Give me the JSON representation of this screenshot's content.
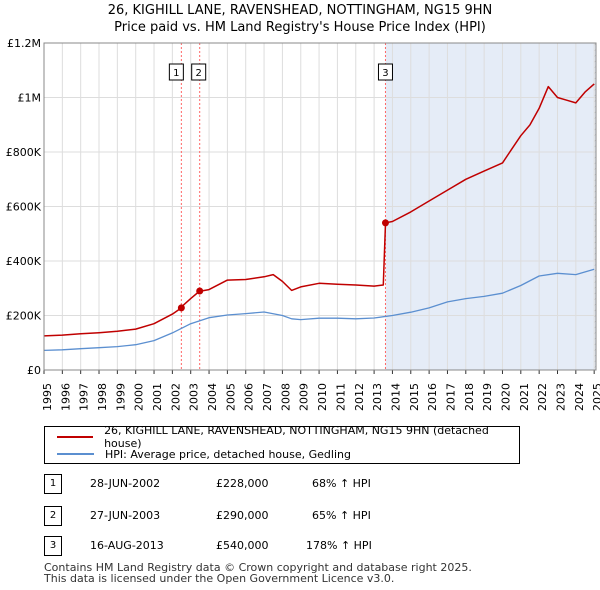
{
  "title": "26, KIGHILL LANE, RAVENSHEAD, NOTTINGHAM, NG15 9HN",
  "subtitle": "Price paid vs. HM Land Registry's House Price Index (HPI)",
  "colors": {
    "property": "#c00000",
    "hpi": "#5b8fd0",
    "shade": "#e5ecf7",
    "marker_line": "#ff6666"
  },
  "legend": {
    "property_label": "26, KIGHILL LANE, RAVENSHEAD, NOTTINGHAM, NG15 9HN (detached house)",
    "hpi_label": "HPI: Average price, detached house, Gedling"
  },
  "sales": [
    {
      "num": "1",
      "date": "28-JUN-2002",
      "price": "£228,000",
      "hpi": "68% ↑ HPI"
    },
    {
      "num": "2",
      "date": "27-JUN-2003",
      "price": "£290,000",
      "hpi": "65% ↑ HPI"
    },
    {
      "num": "3",
      "date": "16-AUG-2013",
      "price": "£540,000",
      "hpi": "178% ↑ HPI"
    }
  ],
  "footer": {
    "line1": "Contains HM Land Registry data © Crown copyright and database right 2025.",
    "line2": "This data is licensed under the Open Government Licence v3.0."
  },
  "chart_data": {
    "type": "line",
    "xlim": [
      1995,
      2025.1
    ],
    "ylim": [
      0,
      1200000
    ],
    "x_ticks": [
      "1995",
      "1996",
      "1997",
      "1998",
      "1999",
      "2000",
      "2001",
      "2002",
      "2003",
      "2004",
      "2005",
      "2006",
      "2007",
      "2008",
      "2009",
      "2010",
      "2011",
      "2012",
      "2013",
      "2014",
      "2015",
      "2016",
      "2017",
      "2018",
      "2019",
      "2020",
      "2021",
      "2022",
      "2023",
      "2024",
      "2025"
    ],
    "y_ticks": [
      {
        "value": 0,
        "label": "£0"
      },
      {
        "value": 200000,
        "label": "£200K"
      },
      {
        "value": 400000,
        "label": "£400K"
      },
      {
        "value": 600000,
        "label": "£600K"
      },
      {
        "value": 800000,
        "label": "£800K"
      },
      {
        "value": 1000000,
        "label": "£1M"
      },
      {
        "value": 1200000,
        "label": "£1.2M"
      }
    ],
    "sale_points": [
      {
        "num": "1",
        "x": 2002.49,
        "y": 228000
      },
      {
        "num": "2",
        "x": 2003.49,
        "y": 290000
      },
      {
        "num": "3",
        "x": 2013.62,
        "y": 540000
      }
    ],
    "series": [
      {
        "name": "26, KIGHILL LANE, RAVENSHEAD, NOTTINGHAM, NG15 9HN (detached house)",
        "x": [
          1995,
          1996,
          1997,
          1998,
          1999,
          2000,
          2001,
          2002,
          2002.49,
          2002.5,
          2003,
          2003.49,
          2003.5,
          2004,
          2005,
          2006,
          2007,
          2007.5,
          2008,
          2008.5,
          2009,
          2010,
          2011,
          2012,
          2013,
          2013.5,
          2013.62,
          2014,
          2015,
          2016,
          2017,
          2018,
          2019,
          2020,
          2020.5,
          2021,
          2021.5,
          2022,
          2022.5,
          2023,
          2023.5,
          2024,
          2024.5,
          2025
        ],
        "values": [
          125000,
          128000,
          133000,
          137000,
          142000,
          150000,
          170000,
          205000,
          228000,
          232000,
          262000,
          290000,
          289000,
          295000,
          330000,
          332000,
          342000,
          350000,
          325000,
          292000,
          305000,
          318000,
          315000,
          312000,
          308000,
          312000,
          540000,
          545000,
          580000,
          620000,
          660000,
          700000,
          730000,
          760000,
          810000,
          860000,
          900000,
          960000,
          1040000,
          1000000,
          990000,
          980000,
          1020000,
          1050000
        ]
      },
      {
        "name": "HPI: Average price, detached house, Gedling",
        "x": [
          1995,
          1996,
          1997,
          1998,
          1999,
          2000,
          2001,
          2002,
          2003,
          2004,
          2005,
          2006,
          2007,
          2008,
          2008.5,
          2009,
          2010,
          2011,
          2012,
          2013,
          2014,
          2015,
          2016,
          2017,
          2018,
          2019,
          2020,
          2021,
          2022,
          2023,
          2024,
          2025
        ],
        "values": [
          72000,
          74000,
          78000,
          82000,
          86000,
          93000,
          108000,
          136000,
          170000,
          192000,
          202000,
          207000,
          213000,
          200000,
          188000,
          185000,
          190000,
          190000,
          188000,
          191000,
          200000,
          212000,
          228000,
          250000,
          262000,
          270000,
          282000,
          310000,
          345000,
          355000,
          350000,
          370000
        ]
      }
    ]
  }
}
